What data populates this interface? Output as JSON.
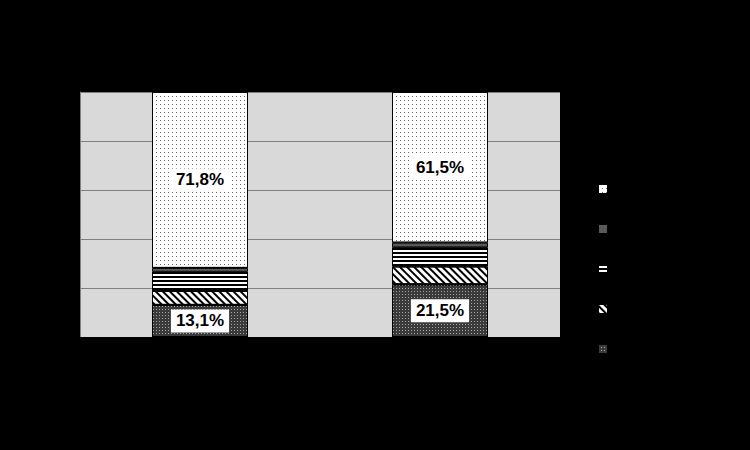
{
  "chart_data": {
    "type": "bar",
    "stacked": true,
    "categories": [
      null,
      null
    ],
    "ylim": [
      0,
      100
    ],
    "yticks": [
      0,
      20,
      40,
      60,
      80,
      100
    ],
    "grid": true,
    "tick_labels": false,
    "legend": "right",
    "series": [
      {
        "color": "#3a3a3a",
        "values": [
          13.1,
          21.5
        ],
        "value_labels": [
          "13,1%",
          "21,5%"
        ],
        "data_labels": true
      },
      {
        "color": "#ffffff",
        "values": [
          5.7,
          7.3
        ]
      },
      {
        "color": "#ffffff",
        "values": [
          7.8,
          7.8
        ]
      },
      {
        "color": "#595959",
        "values": [
          1.6,
          1.9
        ]
      },
      {
        "color": "#ffffff",
        "values": [
          71.8,
          61.5
        ],
        "value_labels": [
          "71,8%",
          "61,5%"
        ],
        "data_labels": true
      }
    ]
  }
}
